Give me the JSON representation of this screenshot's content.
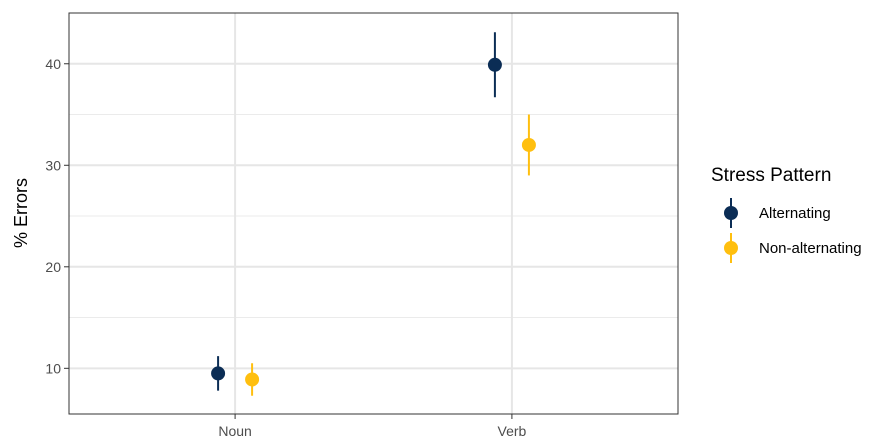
{
  "chart_data": {
    "type": "scatter",
    "categories": [
      "Noun",
      "Verb"
    ],
    "ylabel": "% Errors",
    "xlabel": "",
    "yticks": [
      10,
      20,
      30,
      40
    ],
    "ylim": [
      5.5,
      45
    ],
    "grid": true,
    "legend": {
      "title": "Stress Pattern",
      "placement": "right"
    },
    "series": [
      {
        "name": "Alternating",
        "color": "#0b2d55",
        "values": [
          9.5,
          39.9
        ],
        "lower": [
          7.8,
          36.7
        ],
        "upper": [
          11.2,
          43.1
        ]
      },
      {
        "name": "Non-alternating",
        "color": "#ffbf0f",
        "values": [
          8.9,
          32.0
        ],
        "lower": [
          7.3,
          29.0
        ],
        "upper": [
          10.5,
          35.0
        ]
      }
    ]
  }
}
